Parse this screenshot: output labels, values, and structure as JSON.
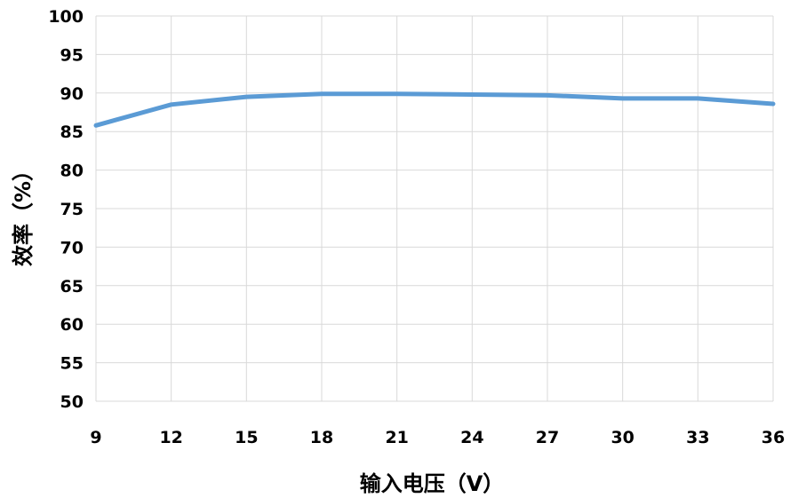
{
  "chart_data": {
    "type": "line",
    "title": "",
    "xlabel": "输入电压（V）",
    "ylabel": "效率（%）",
    "x": [
      9,
      12,
      15,
      18,
      21,
      24,
      27,
      30,
      33,
      36
    ],
    "x_tick_labels": [
      "9",
      "12",
      "15",
      "18",
      "21",
      "24",
      "27",
      "30",
      "33",
      "36"
    ],
    "xlim": [
      9,
      36
    ],
    "y_tick_labels": [
      "50",
      "55",
      "60",
      "65",
      "70",
      "75",
      "80",
      "85",
      "90",
      "95",
      "100"
    ],
    "ylim": [
      50,
      100
    ],
    "y_step": 5,
    "grid": true,
    "legend": "none",
    "series": [
      {
        "values": [
          85.8,
          88.5,
          89.5,
          89.9,
          89.9,
          89.8,
          89.7,
          89.3,
          89.3,
          88.6
        ],
        "color": "#5b9bd5"
      }
    ]
  }
}
